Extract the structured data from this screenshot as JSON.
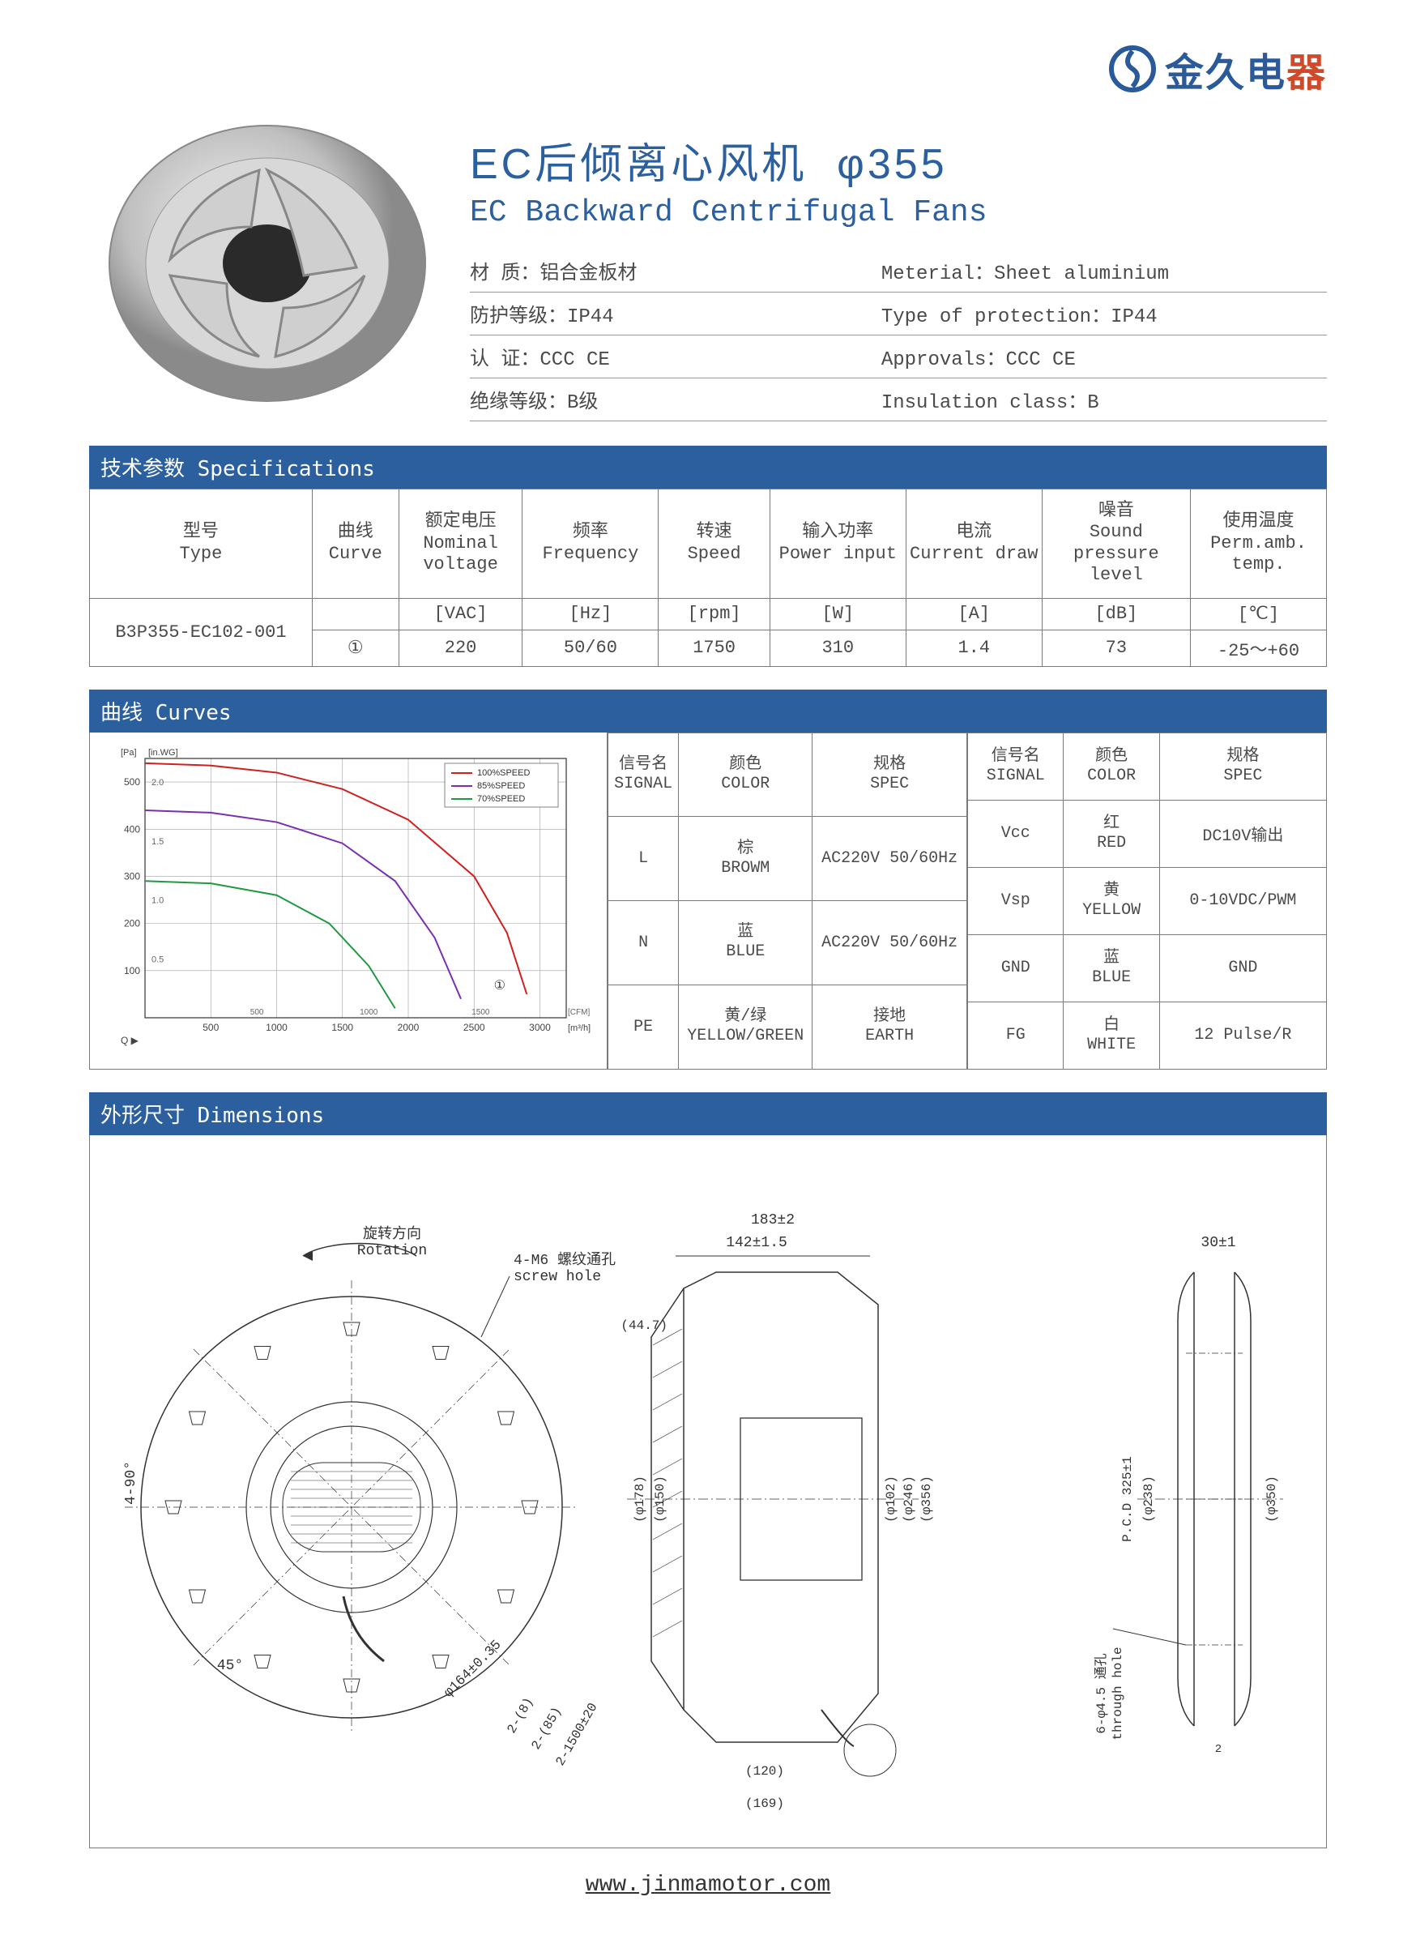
{
  "brand": {
    "logo_text": "金久电器",
    "logo_color_cn": "#2a5a9a",
    "logo_color_last": "#d04a2a"
  },
  "title": {
    "cn": "EC后倾离心风机",
    "size": "φ355",
    "en": "EC Backward Centrifugal Fans"
  },
  "attrs": [
    {
      "cn": "材   质：铝合金板材",
      "en": "Meterial：Sheet aluminium"
    },
    {
      "cn": "防护等级：IP44",
      "en": "Type of protection：IP44"
    },
    {
      "cn": "认   证：CCC CE",
      "en": "Approvals：CCC CE"
    },
    {
      "cn": "绝缘等级：B级",
      "en": "Insulation class：B"
    }
  ],
  "sections": {
    "specs": "技术参数 Specifications",
    "curves": "曲线 Curves",
    "dims": "外形尺寸 Dimensions"
  },
  "spec_table": {
    "headers": [
      {
        "cn": "型号",
        "en": "Type"
      },
      {
        "cn": "曲线",
        "en": "Curve"
      },
      {
        "cn": "额定电压",
        "en": "Nominal voltage"
      },
      {
        "cn": "频率",
        "en": "Frequency"
      },
      {
        "cn": "转速",
        "en": "Speed"
      },
      {
        "cn": "输入功率",
        "en": "Power input"
      },
      {
        "cn": "电流",
        "en": "Current draw"
      },
      {
        "cn": "噪音",
        "en": "Sound pressure level"
      },
      {
        "cn": "使用温度",
        "en": "Perm.amb. temp."
      }
    ],
    "units": [
      "",
      "",
      "[VAC]",
      "[Hz]",
      "[rpm]",
      "[W]",
      "[A]",
      "[dB]",
      "[℃]"
    ],
    "row": {
      "type": "B3P355-EC102-001",
      "curve": "①",
      "values": [
        "220",
        "50/60",
        "1750",
        "310",
        "1.4",
        "73",
        "-25～+60"
      ]
    }
  },
  "chart": {
    "y_label_top": "[Pa]",
    "y_left_ticks": [
      "500",
      "400",
      "300",
      "200",
      "100"
    ],
    "y_right_unit": "[in.WG]",
    "y_right_ticks": [
      "2.0",
      "1.5",
      "1.0",
      "0.5"
    ],
    "x_bottom_ticks": [
      "500",
      "1000",
      "1500",
      "2000",
      "2500",
      "3000"
    ],
    "x_bottom_unit": "[m³/h]",
    "x_top_ticks": [
      "500",
      "1000",
      "1500"
    ],
    "x_top_unit": "[CFM]",
    "q_label": "Q ▶",
    "legend": [
      {
        "label": "100%SPEED",
        "color": "#d02020"
      },
      {
        "label": "85%SPEED",
        "color": "#7a2fb0"
      },
      {
        "label": "70%SPEED",
        "color": "#209a40"
      }
    ],
    "marker": "①",
    "grid_color": "#9aa0a6",
    "bg": "#ffffff",
    "xlim": [
      0,
      3200
    ],
    "ylim": [
      0,
      550
    ],
    "series": {
      "s100": [
        [
          0,
          540
        ],
        [
          500,
          535
        ],
        [
          1000,
          520
        ],
        [
          1500,
          485
        ],
        [
          2000,
          420
        ],
        [
          2500,
          300
        ],
        [
          2750,
          180
        ],
        [
          2900,
          50
        ]
      ],
      "s85": [
        [
          0,
          440
        ],
        [
          500,
          435
        ],
        [
          1000,
          415
        ],
        [
          1500,
          370
        ],
        [
          1900,
          290
        ],
        [
          2200,
          170
        ],
        [
          2400,
          40
        ]
      ],
      "s70": [
        [
          0,
          290
        ],
        [
          500,
          285
        ],
        [
          1000,
          260
        ],
        [
          1400,
          200
        ],
        [
          1700,
          110
        ],
        [
          1900,
          20
        ]
      ]
    }
  },
  "signal_left": {
    "headers": [
      {
        "cn": "信号名",
        "en": "SIGNAL"
      },
      {
        "cn": "颜色",
        "en": "COLOR"
      },
      {
        "cn": "规格",
        "en": "SPEC"
      }
    ],
    "rows": [
      {
        "sig": "L",
        "color_cn": "棕",
        "color_en": "BROWM",
        "spec": "AC220V 50/60Hz"
      },
      {
        "sig": "N",
        "color_cn": "蓝",
        "color_en": "BLUE",
        "spec": "AC220V 50/60Hz"
      },
      {
        "sig": "PE",
        "color_cn": "黄/绿",
        "color_en": "YELLOW/GREEN",
        "spec_cn": "接地",
        "spec_en": "EARTH"
      }
    ]
  },
  "signal_right": {
    "headers": [
      {
        "cn": "信号名",
        "en": "SIGNAL"
      },
      {
        "cn": "颜色",
        "en": "COLOR"
      },
      {
        "cn": "规格",
        "en": "SPEC"
      }
    ],
    "rows": [
      {
        "sig": "Vcc",
        "color_cn": "红",
        "color_en": "RED",
        "spec": "DC10V输出"
      },
      {
        "sig": "Vsp",
        "color_cn": "黄",
        "color_en": "YELLOW",
        "spec": "0-10VDC/PWM"
      },
      {
        "sig": "GND",
        "color_cn": "蓝",
        "color_en": "BLUE",
        "spec": "GND"
      },
      {
        "sig": "FG",
        "color_cn": "白",
        "color_en": "WHITE",
        "spec": "12 Pulse/R"
      }
    ]
  },
  "dimensions_labels": {
    "rotation_cn": "旋转方向",
    "rotation_en": "Rotation",
    "screw_cn": "4-M6 螺纹通孔",
    "screw_en": "screw hole",
    "through_cn": "6-φ4.5 通孔",
    "through_en": "through hole",
    "angles": [
      "4-90°",
      "45°"
    ],
    "front": [
      "(φ178)",
      "(φ150)",
      "φ164±0.35",
      "2-(8)",
      "2-(85)",
      "2-1500±20"
    ],
    "side": [
      "183±2",
      "142±1.5",
      "(44.7)",
      "(φ102)",
      "(φ246)",
      "(φ356)",
      "(120)",
      "(169)"
    ],
    "back": [
      "30±1",
      "(φ238)",
      "P.C.D 325±1",
      "(φ350)",
      "2"
    ]
  },
  "footer": "www.jinmamotor.com",
  "colors": {
    "brand_blue": "#2b5f9e",
    "border": "#7a7a7a",
    "text": "#4a4a4a"
  }
}
